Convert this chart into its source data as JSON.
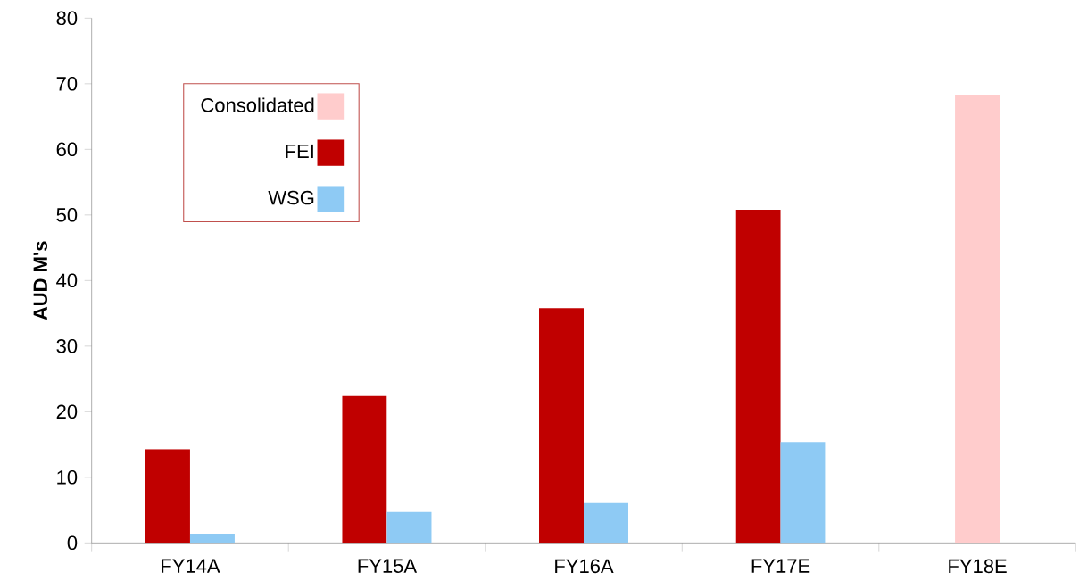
{
  "chart_data": {
    "type": "bar",
    "ylabel": "AUD M's",
    "categories": [
      "FY14A",
      "FY15A",
      "FY16A",
      "FY17E",
      "FY18E"
    ],
    "series": [
      {
        "name": "Consolidated",
        "color": "#ffcccc",
        "values": [
          null,
          null,
          null,
          null,
          68.2
        ]
      },
      {
        "name": "FEI",
        "color": "#c00000",
        "values": [
          14.3,
          22.4,
          35.8,
          50.8,
          null
        ]
      },
      {
        "name": "WSG",
        "color": "#8ecaf4",
        "values": [
          1.4,
          4.7,
          6.1,
          15.4,
          null
        ]
      }
    ],
    "ylim": [
      0,
      80
    ],
    "yticks": [
      0,
      10,
      20,
      30,
      40,
      50,
      60,
      70,
      80
    ],
    "grid": false,
    "legend": "top left"
  }
}
